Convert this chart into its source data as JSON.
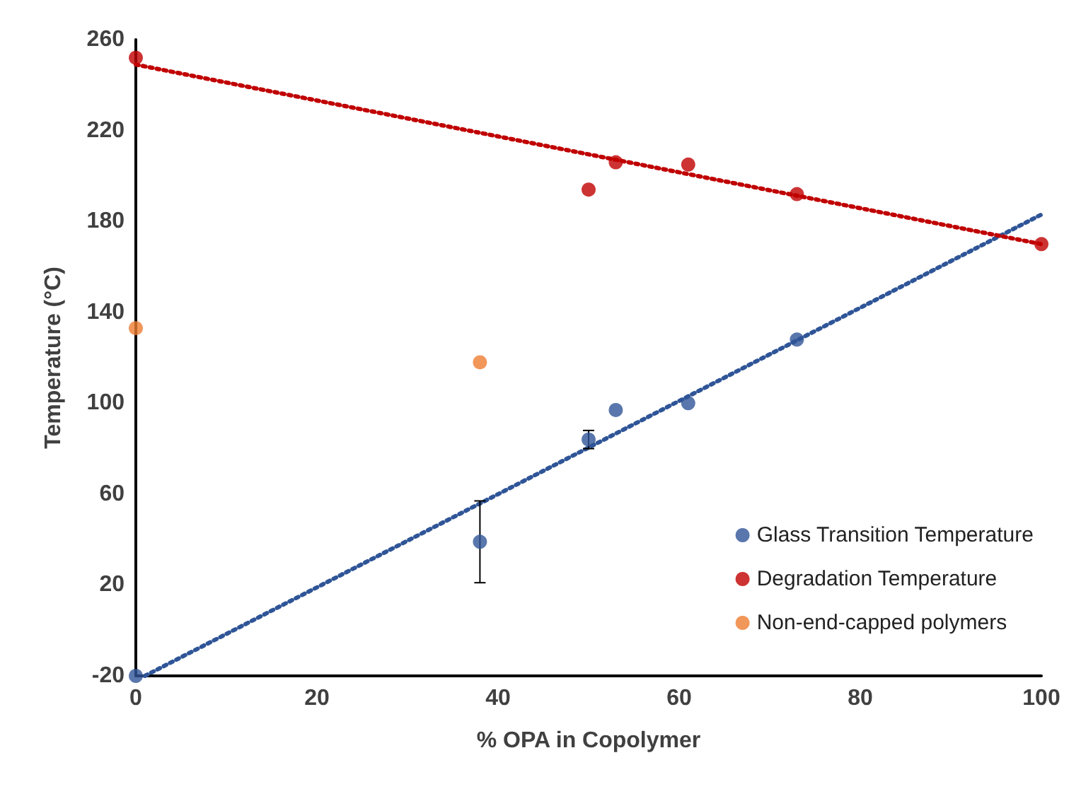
{
  "chart_data": {
    "type": "scatter",
    "xlabel": "% OPA in Copolymer",
    "ylabel": "Temperature (°C)",
    "xlim": [
      0,
      100
    ],
    "xticks": [
      0,
      20,
      40,
      60,
      80,
      100
    ],
    "ylim": [
      -20,
      260
    ],
    "yticks": [
      -20,
      20,
      60,
      100,
      140,
      180,
      220,
      260
    ],
    "grid": false,
    "legend": "bottom right",
    "marker": "circle",
    "series": [
      {
        "name": "Glass Transition Temperature",
        "color": "#2f5597",
        "x": [
          0,
          38,
          50,
          53,
          61,
          73
        ],
        "values": [
          -20,
          39,
          84,
          97,
          100,
          128
        ],
        "errors": [
          null,
          18,
          4,
          null,
          null,
          null
        ]
      },
      {
        "name": "Degradation Temperature",
        "color": "#c00000",
        "x": [
          0,
          50,
          53,
          61,
          73,
          100
        ],
        "values": [
          252,
          194,
          206,
          205,
          192,
          170
        ]
      },
      {
        "name": "Non-end-capped polymers",
        "color": "#ed7d31",
        "x": [
          0,
          38
        ],
        "values": [
          133,
          118
        ]
      },
      {
        "type": "line",
        "color": "#2f5597",
        "x": [
          1,
          100
        ],
        "values": [
          -20,
          183
        ],
        "line_style": "dotted",
        "marker": "none"
      },
      {
        "type": "line",
        "color": "#c00000",
        "x": [
          0,
          100
        ],
        "values": [
          249,
          170
        ],
        "line_style": "dotted",
        "marker": "none"
      }
    ]
  }
}
